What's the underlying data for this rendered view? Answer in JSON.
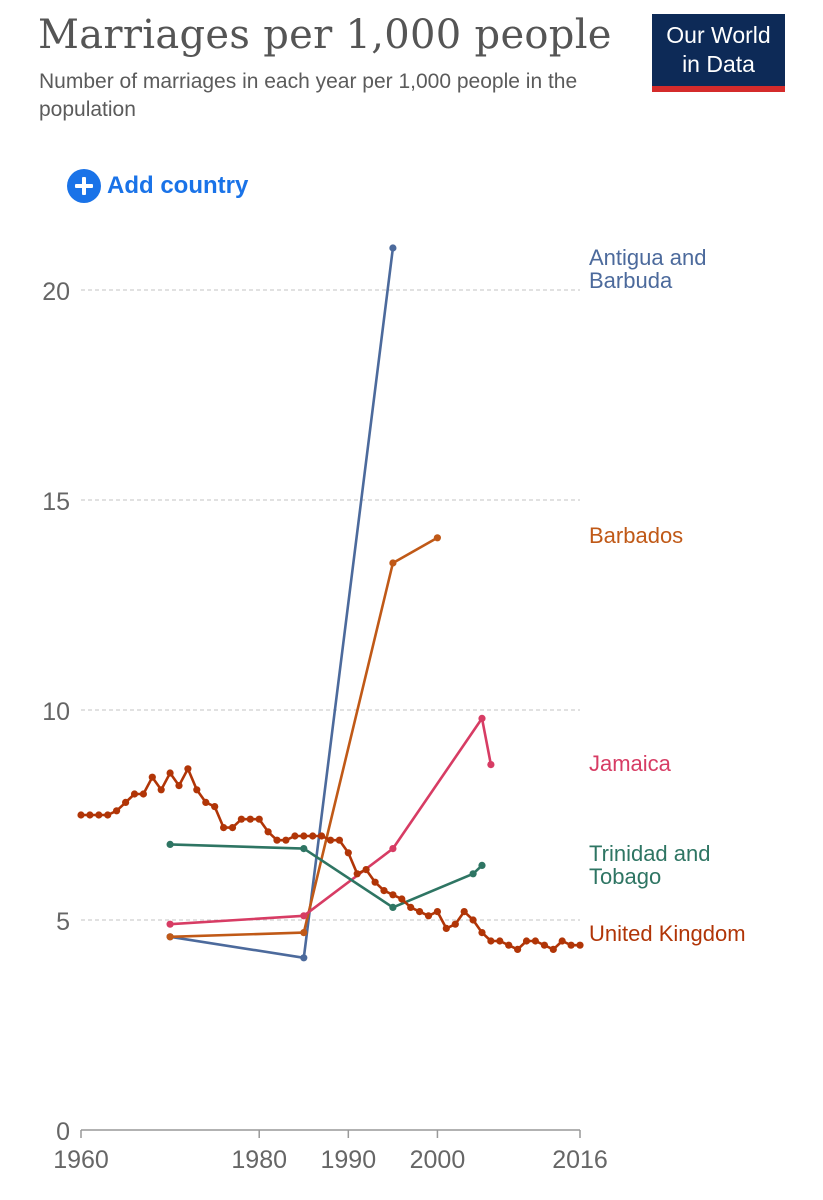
{
  "header": {
    "title": "Marriages per 1,000 people",
    "subtitle": "Number of marriages in each year per 1,000 people in the population"
  },
  "logo": {
    "line1": "Our World",
    "line2": "in Data"
  },
  "controls": {
    "add_country_label": "Add country",
    "add_country_icon": "plus-circle-icon"
  },
  "colors": {
    "Antigua and Barbuda": "#4c6a9c",
    "Barbados": "#c05917",
    "Jamaica": "#d73c64",
    "Trinidad and Tobago": "#2e7563",
    "United Kingdom": "#b13507"
  },
  "chart_data": {
    "type": "line",
    "title": "Marriages per 1,000 people",
    "xlabel": "",
    "ylabel": "",
    "xlim": [
      1960,
      2016
    ],
    "ylim": [
      0,
      21
    ],
    "x_ticks": [
      "1960",
      "1980",
      "1990",
      "2000",
      "2016"
    ],
    "y_ticks": [
      "0",
      "5",
      "10",
      "15",
      "20"
    ],
    "grid": "horizontal dashed",
    "legend": "right (labels at line ends)",
    "series": [
      {
        "name": "Antigua and Barbuda",
        "points": [
          [
            1970,
            4.6
          ],
          [
            1985,
            4.1
          ],
          [
            1995,
            21.0
          ]
        ]
      },
      {
        "name": "Barbados",
        "points": [
          [
            1970,
            4.6
          ],
          [
            1985,
            4.7
          ],
          [
            1995,
            13.5
          ],
          [
            2000,
            14.1
          ]
        ]
      },
      {
        "name": "Jamaica",
        "points": [
          [
            1970,
            4.9
          ],
          [
            1985,
            5.1
          ],
          [
            1995,
            6.7
          ],
          [
            2005,
            9.8
          ],
          [
            2006,
            8.7
          ]
        ]
      },
      {
        "name": "Trinidad and Tobago",
        "points": [
          [
            1970,
            6.8
          ],
          [
            1985,
            6.7
          ],
          [
            1995,
            5.3
          ],
          [
            2004,
            6.1
          ],
          [
            2005,
            6.3
          ]
        ]
      },
      {
        "name": "United Kingdom",
        "points": [
          [
            1960,
            7.5
          ],
          [
            1961,
            7.5
          ],
          [
            1962,
            7.5
          ],
          [
            1963,
            7.5
          ],
          [
            1964,
            7.6
          ],
          [
            1965,
            7.8
          ],
          [
            1966,
            8.0
          ],
          [
            1967,
            8.0
          ],
          [
            1968,
            8.4
          ],
          [
            1969,
            8.1
          ],
          [
            1970,
            8.5
          ],
          [
            1971,
            8.2
          ],
          [
            1972,
            8.6
          ],
          [
            1973,
            8.1
          ],
          [
            1974,
            7.8
          ],
          [
            1975,
            7.7
          ],
          [
            1976,
            7.2
          ],
          [
            1977,
            7.2
          ],
          [
            1978,
            7.4
          ],
          [
            1979,
            7.4
          ],
          [
            1980,
            7.4
          ],
          [
            1981,
            7.1
          ],
          [
            1982,
            6.9
          ],
          [
            1983,
            6.9
          ],
          [
            1984,
            7.0
          ],
          [
            1985,
            7.0
          ],
          [
            1986,
            7.0
          ],
          [
            1987,
            7.0
          ],
          [
            1988,
            6.9
          ],
          [
            1989,
            6.9
          ],
          [
            1990,
            6.6
          ],
          [
            1991,
            6.1
          ],
          [
            1992,
            6.2
          ],
          [
            1993,
            5.9
          ],
          [
            1994,
            5.7
          ],
          [
            1995,
            5.6
          ],
          [
            1996,
            5.5
          ],
          [
            1997,
            5.3
          ],
          [
            1998,
            5.2
          ],
          [
            1999,
            5.1
          ],
          [
            2000,
            5.2
          ],
          [
            2001,
            4.8
          ],
          [
            2002,
            4.9
          ],
          [
            2003,
            5.2
          ],
          [
            2004,
            5.0
          ],
          [
            2005,
            4.7
          ],
          [
            2006,
            4.5
          ],
          [
            2007,
            4.5
          ],
          [
            2008,
            4.4
          ],
          [
            2009,
            4.3
          ],
          [
            2010,
            4.5
          ],
          [
            2011,
            4.5
          ],
          [
            2012,
            4.4
          ],
          [
            2013,
            4.3
          ],
          [
            2014,
            4.5
          ],
          [
            2015,
            4.4
          ],
          [
            2016,
            4.4
          ]
        ]
      }
    ]
  }
}
